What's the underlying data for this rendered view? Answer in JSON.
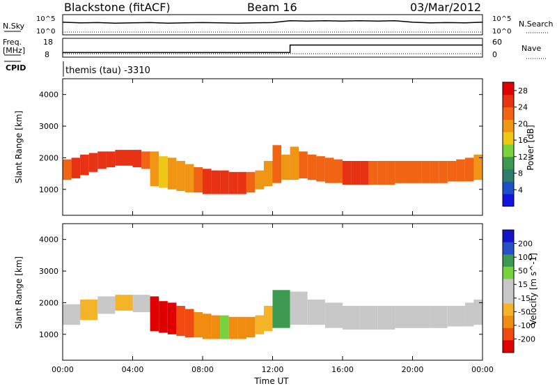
{
  "header": {
    "station": "Blackstone (fitACF)",
    "beam": "Beam 16",
    "date": "03/Mar/2012"
  },
  "noise_panel": {
    "left_label": "N.Sky",
    "right_label": "N.Search",
    "left_ticks": [
      "10^5",
      "10^0"
    ],
    "right_ticks": [
      "10^5",
      "10^0"
    ]
  },
  "freq_panel": {
    "left_label_line1": "Freq.",
    "left_label_line2": "[MHz]",
    "left_ticks": [
      "18",
      "8"
    ],
    "right_ticks": [
      "60",
      "0"
    ],
    "right_label": "Nave"
  },
  "cpid": {
    "label": "CPID",
    "value": "themis (tau) -3310"
  },
  "colors": {
    "power_scale": [
      "#1414e0",
      "#1e50c8",
      "#2e7d6e",
      "#3c9a50",
      "#7ad23c",
      "#f0c814",
      "#f09614",
      "#f06414",
      "#e83214",
      "#e00000"
    ],
    "velocity_scale": [
      "#e00000",
      "#f04a10",
      "#f08c10",
      "#f5b428",
      "#c8c8c8",
      "#c8c8c8",
      "#78d23c",
      "#3c9a50",
      "#2850c8",
      "#1414c8"
    ]
  },
  "chart_data": [
    {
      "type": "heatmap",
      "name": "power",
      "ylabel": "Slant Range [km]",
      "xlabel": "",
      "x_range_hours": [
        0,
        24
      ],
      "ylim": [
        180,
        4500
      ],
      "x_ticks": [
        "00:00",
        "04:00",
        "08:00",
        "12:00",
        "16:00",
        "20:00",
        "00:00"
      ],
      "y_ticks": [
        1000,
        2000,
        3000,
        4000
      ],
      "colorbar": {
        "label": "Power [dB]",
        "ticks": [
          4,
          8,
          12,
          16,
          20,
          24,
          28
        ],
        "range": [
          0,
          30
        ]
      },
      "series": [
        {
          "t": 0.0,
          "lo": 1300,
          "hi": 1950,
          "val": 22
        },
        {
          "t": 0.5,
          "lo": 1350,
          "hi": 2000,
          "val": 24
        },
        {
          "t": 1.0,
          "lo": 1450,
          "hi": 2100,
          "val": 25
        },
        {
          "t": 1.5,
          "lo": 1550,
          "hi": 2150,
          "val": 26
        },
        {
          "t": 2.0,
          "lo": 1650,
          "hi": 2200,
          "val": 26
        },
        {
          "t": 2.5,
          "lo": 1700,
          "hi": 2200,
          "val": 26
        },
        {
          "t": 3.0,
          "lo": 1750,
          "hi": 2250,
          "val": 25
        },
        {
          "t": 3.5,
          "lo": 1750,
          "hi": 2250,
          "val": 25
        },
        {
          "t": 4.0,
          "lo": 1700,
          "hi": 2250,
          "val": 24
        },
        {
          "t": 4.5,
          "lo": 1650,
          "hi": 2200,
          "val": 22
        },
        {
          "t": 5.0,
          "lo": 1100,
          "hi": 2200,
          "val": 18
        },
        {
          "t": 5.5,
          "lo": 1050,
          "hi": 2050,
          "val": 17
        },
        {
          "t": 6.0,
          "lo": 1000,
          "hi": 2000,
          "val": 18
        },
        {
          "t": 6.5,
          "lo": 950,
          "hi": 1900,
          "val": 19
        },
        {
          "t": 7.0,
          "lo": 900,
          "hi": 1800,
          "val": 20
        },
        {
          "t": 7.5,
          "lo": 900,
          "hi": 1700,
          "val": 22
        },
        {
          "t": 8.0,
          "lo": 850,
          "hi": 1650,
          "val": 24
        },
        {
          "t": 8.5,
          "lo": 850,
          "hi": 1600,
          "val": 25
        },
        {
          "t": 9.0,
          "lo": 850,
          "hi": 1600,
          "val": 25
        },
        {
          "t": 9.5,
          "lo": 850,
          "hi": 1550,
          "val": 24
        },
        {
          "t": 10.0,
          "lo": 850,
          "hi": 1550,
          "val": 24
        },
        {
          "t": 10.5,
          "lo": 900,
          "hi": 1550,
          "val": 22
        },
        {
          "t": 11.0,
          "lo": 1000,
          "hi": 1600,
          "val": 20
        },
        {
          "t": 11.5,
          "lo": 1100,
          "hi": 1900,
          "val": 20
        },
        {
          "t": 12.0,
          "lo": 1200,
          "hi": 2400,
          "val": 22
        },
        {
          "t": 12.5,
          "lo": 1300,
          "hi": 2100,
          "val": 18
        },
        {
          "t": 13.0,
          "lo": 1300,
          "hi": 2350,
          "val": 20
        },
        {
          "t": 13.5,
          "lo": 1350,
          "hi": 2200,
          "val": 22
        },
        {
          "t": 14.0,
          "lo": 1300,
          "hi": 2100,
          "val": 22
        },
        {
          "t": 14.5,
          "lo": 1250,
          "hi": 2050,
          "val": 22
        },
        {
          "t": 15.0,
          "lo": 1200,
          "hi": 2000,
          "val": 23
        },
        {
          "t": 15.5,
          "lo": 1200,
          "hi": 1950,
          "val": 23
        },
        {
          "t": 16.0,
          "lo": 1150,
          "hi": 1900,
          "val": 24
        },
        {
          "t": 16.5,
          "lo": 1150,
          "hi": 1900,
          "val": 24
        },
        {
          "t": 17.0,
          "lo": 1150,
          "hi": 1900,
          "val": 24
        },
        {
          "t": 17.5,
          "lo": 1150,
          "hi": 1900,
          "val": 23
        },
        {
          "t": 18.0,
          "lo": 1150,
          "hi": 1900,
          "val": 23
        },
        {
          "t": 18.5,
          "lo": 1150,
          "hi": 1900,
          "val": 23
        },
        {
          "t": 19.0,
          "lo": 1200,
          "hi": 1900,
          "val": 22
        },
        {
          "t": 19.5,
          "lo": 1200,
          "hi": 1900,
          "val": 22
        },
        {
          "t": 20.0,
          "lo": 1200,
          "hi": 1900,
          "val": 22
        },
        {
          "t": 20.5,
          "lo": 1200,
          "hi": 1900,
          "val": 23
        },
        {
          "t": 21.0,
          "lo": 1200,
          "hi": 1900,
          "val": 23
        },
        {
          "t": 21.5,
          "lo": 1200,
          "hi": 1900,
          "val": 23
        },
        {
          "t": 22.0,
          "lo": 1250,
          "hi": 1900,
          "val": 23
        },
        {
          "t": 22.5,
          "lo": 1250,
          "hi": 1950,
          "val": 22
        },
        {
          "t": 23.0,
          "lo": 1250,
          "hi": 2000,
          "val": 21
        },
        {
          "t": 23.5,
          "lo": 1300,
          "hi": 2100,
          "val": 20
        }
      ]
    },
    {
      "type": "heatmap",
      "name": "velocity",
      "ylabel": "Slant Range [km]",
      "xlabel": "Time UT",
      "x_range_hours": [
        0,
        24
      ],
      "ylim": [
        180,
        4500
      ],
      "x_ticks": [
        "00:00",
        "04:00",
        "08:00",
        "12:00",
        "16:00",
        "20:00",
        "00:00"
      ],
      "y_ticks": [
        1000,
        2000,
        3000,
        4000
      ],
      "colorbar": {
        "label": "Velocity [m s^-1]",
        "ticks": [
          "200",
          "100",
          "50",
          "15",
          "-15",
          "-50",
          "-100",
          "-200"
        ]
      },
      "series": [
        {
          "t": 0.0,
          "lo": 1300,
          "hi": 1950,
          "val": 0
        },
        {
          "t": 1.0,
          "lo": 1450,
          "hi": 2100,
          "val": -20
        },
        {
          "t": 2.0,
          "lo": 1650,
          "hi": 2200,
          "val": -10
        },
        {
          "t": 3.0,
          "lo": 1750,
          "hi": 2250,
          "val": -20
        },
        {
          "t": 4.0,
          "lo": 1700,
          "hi": 2250,
          "val": 0
        },
        {
          "t": 5.0,
          "lo": 1100,
          "hi": 2200,
          "val": -150
        },
        {
          "t": 5.5,
          "lo": 1050,
          "hi": 2050,
          "val": -200
        },
        {
          "t": 6.0,
          "lo": 1000,
          "hi": 2000,
          "val": -200
        },
        {
          "t": 6.5,
          "lo": 950,
          "hi": 1900,
          "val": -120
        },
        {
          "t": 7.0,
          "lo": 900,
          "hi": 1800,
          "val": -80
        },
        {
          "t": 7.5,
          "lo": 900,
          "hi": 1700,
          "val": -60
        },
        {
          "t": 8.0,
          "lo": 850,
          "hi": 1650,
          "val": -50
        },
        {
          "t": 8.5,
          "lo": 850,
          "hi": 1600,
          "val": -40
        },
        {
          "t": 9.0,
          "lo": 850,
          "hi": 1600,
          "val": 30
        },
        {
          "t": 9.5,
          "lo": 850,
          "hi": 1550,
          "val": -40
        },
        {
          "t": 10.0,
          "lo": 850,
          "hi": 1550,
          "val": -50
        },
        {
          "t": 10.5,
          "lo": 900,
          "hi": 1550,
          "val": -40
        },
        {
          "t": 11.0,
          "lo": 1000,
          "hi": 1600,
          "val": -30
        },
        {
          "t": 11.5,
          "lo": 1100,
          "hi": 1900,
          "val": -20
        },
        {
          "t": 12.0,
          "lo": 1200,
          "hi": 2400,
          "val": 40
        },
        {
          "t": 13.0,
          "lo": 1300,
          "hi": 2350,
          "val": 0
        },
        {
          "t": 14.0,
          "lo": 1300,
          "hi": 2100,
          "val": 0
        },
        {
          "t": 15.0,
          "lo": 1200,
          "hi": 2000,
          "val": 0
        },
        {
          "t": 16.0,
          "lo": 1150,
          "hi": 1900,
          "val": 0
        },
        {
          "t": 17.0,
          "lo": 1150,
          "hi": 1900,
          "val": 0
        },
        {
          "t": 18.0,
          "lo": 1150,
          "hi": 1900,
          "val": 0
        },
        {
          "t": 19.0,
          "lo": 1200,
          "hi": 1900,
          "val": 0
        },
        {
          "t": 20.0,
          "lo": 1200,
          "hi": 1900,
          "val": 0
        },
        {
          "t": 21.0,
          "lo": 1200,
          "hi": 1900,
          "val": 0
        },
        {
          "t": 22.0,
          "lo": 1250,
          "hi": 1900,
          "val": 0
        },
        {
          "t": 23.0,
          "lo": 1250,
          "hi": 2000,
          "val": 0
        },
        {
          "t": 23.5,
          "lo": 1300,
          "hi": 2100,
          "val": 0
        }
      ]
    },
    {
      "type": "line",
      "name": "noise",
      "series": [
        {
          "name": "N.Sky",
          "x": [
            0,
            1,
            2,
            3,
            4,
            5,
            6,
            7,
            8,
            9,
            10,
            11,
            12,
            13,
            14,
            15,
            16,
            17,
            18,
            19,
            20,
            21,
            22,
            23,
            24
          ],
          "y": [
            3.2,
            3.0,
            3.1,
            2.9,
            3.0,
            3.1,
            2.9,
            3.0,
            3.1,
            3.0,
            2.9,
            3.0,
            3.1,
            3.7,
            3.6,
            3.7,
            3.6,
            3.7,
            3.6,
            3.7,
            3.2,
            3.0,
            3.1,
            3.0,
            3.2
          ]
        }
      ]
    },
    {
      "type": "line",
      "name": "frequency",
      "series": [
        {
          "name": "Freq",
          "x": [
            0,
            13,
            13,
            24
          ],
          "y": [
            10,
            10,
            16,
            16
          ]
        }
      ]
    }
  ]
}
